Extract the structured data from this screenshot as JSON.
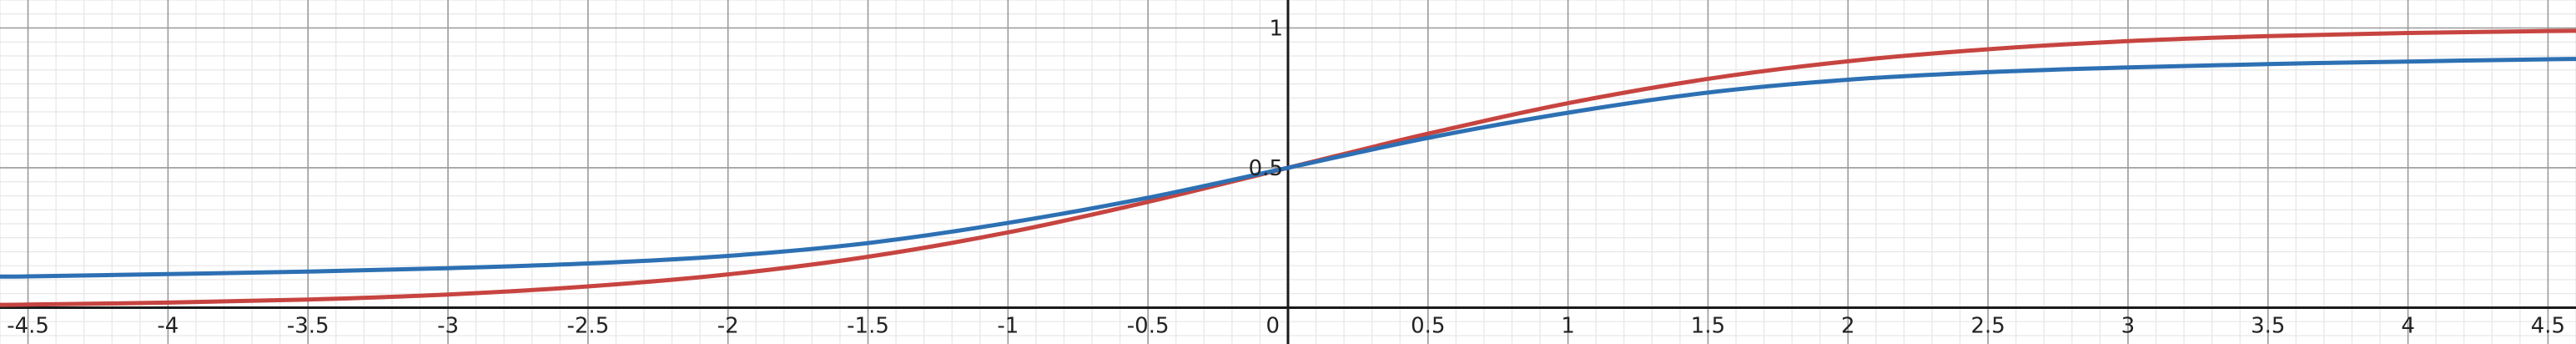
{
  "chart_data": {
    "type": "line",
    "title": "",
    "xlabel": "",
    "ylabel": "",
    "xlim": [
      -4.6,
      4.6
    ],
    "ylim": [
      -0.13,
      1.1
    ],
    "grid": true,
    "x_ticks": [
      -4.5,
      -4,
      -3.5,
      -3,
      -2.5,
      -2,
      -1.5,
      -1,
      -0.5,
      0.5,
      1,
      1.5,
      2,
      2.5,
      3,
      3.5,
      4,
      4.5
    ],
    "x_tick_labels": [
      "-4.5",
      "-4",
      "-3.5",
      "-3",
      "-2.5",
      "-2",
      "-1.5",
      "-1",
      "-0.5",
      "0.5",
      "1",
      "1.5",
      "2",
      "2.5",
      "3",
      "3.5",
      "4",
      "4.5"
    ],
    "y_ticks": [
      0.5,
      1
    ],
    "y_tick_labels": [
      "0.5",
      "1"
    ],
    "origin_label": "0",
    "series": [
      {
        "name": "red curve",
        "color": "#c74440",
        "x": [
          -4.6,
          -4.5,
          -4,
          -3.5,
          -3,
          -2.5,
          -2,
          -1.5,
          -1,
          -0.5,
          0,
          0.5,
          1,
          1.5,
          2,
          2.5,
          3,
          3.5,
          4,
          4.5,
          4.6
        ],
        "values": [
          0.01,
          0.011,
          0.018,
          0.029,
          0.047,
          0.076,
          0.119,
          0.182,
          0.269,
          0.378,
          0.5,
          0.622,
          0.731,
          0.818,
          0.881,
          0.924,
          0.953,
          0.971,
          0.982,
          0.989,
          0.99
        ]
      },
      {
        "name": "blue curve",
        "color": "#2d70b3",
        "x": [
          -4.6,
          -4.5,
          -4,
          -3.5,
          -3,
          -2.5,
          -2,
          -1.5,
          -1,
          -0.5,
          0,
          0.5,
          1,
          1.5,
          2,
          2.5,
          3,
          3.5,
          4,
          4.5,
          4.6
        ],
        "values": [
          0.111,
          0.112,
          0.12,
          0.129,
          0.141,
          0.158,
          0.185,
          0.231,
          0.303,
          0.393,
          0.5,
          0.607,
          0.697,
          0.769,
          0.815,
          0.842,
          0.859,
          0.871,
          0.88,
          0.888,
          0.889
        ]
      }
    ]
  }
}
